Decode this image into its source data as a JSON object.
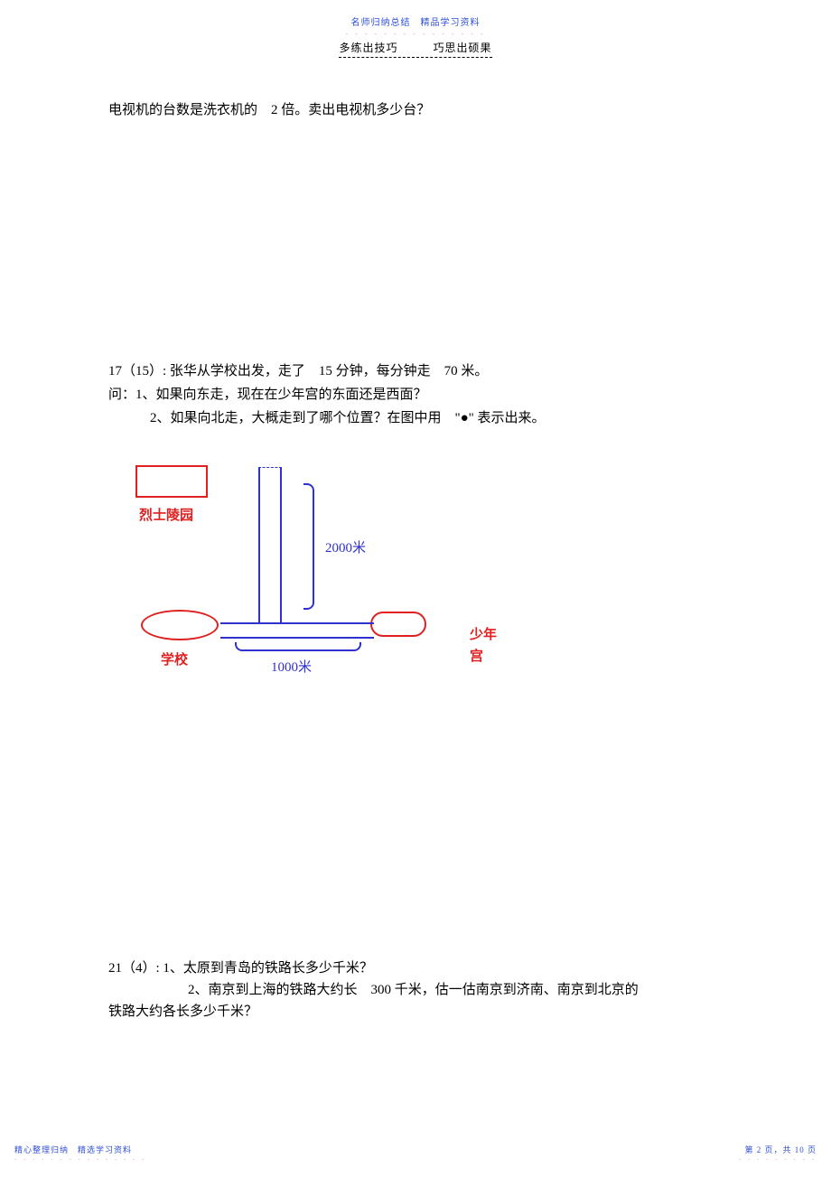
{
  "header": {
    "top_line": "名师归纳总结　精品学习资料",
    "top_dots": "- - - - - - - - - - - - - - -",
    "sub_line": "多练出技巧　　　巧思出硕果"
  },
  "q16": {
    "text": "电视机的台数是洗衣机的　2 倍。卖出电视机多少台？"
  },
  "q17": {
    "line1": "17（15）: 张华从学校出发，走了　15 分钟，每分钟走　70 米。",
    "sub1": "问：1、如果向东走，现在在少年宫的东面还是西面？",
    "sub2": "2、如果向北走，大概走到了哪个位置？在图中用　\"●\" 表示出来。"
  },
  "diagram": {
    "cemetery_label": "烈士陵园",
    "school_label": "学校",
    "palace_label": "少年宫",
    "dist_vert": "2000米",
    "dist_horiz": "1000米",
    "colors": {
      "shape_border": "#e02020",
      "path": "#3030d0",
      "label_red": "#e02020",
      "label_blue": "#3030d0"
    }
  },
  "q21": {
    "line1": "21（4）: 1、太原到青岛的铁路长多少千米？",
    "line2": "2、南京到上海的铁路大约长　300 千米，估一估南京到济南、南京到北京的",
    "line3": "铁路大约各长多少千米？"
  },
  "footer": {
    "left_text": "精心整理归纳　精选学习资料",
    "left_dots": "- - - - - - - - - - - - - - -",
    "right_text": "第 2 页，共 10 页",
    "right_dots": "- - - - - - - - -"
  }
}
